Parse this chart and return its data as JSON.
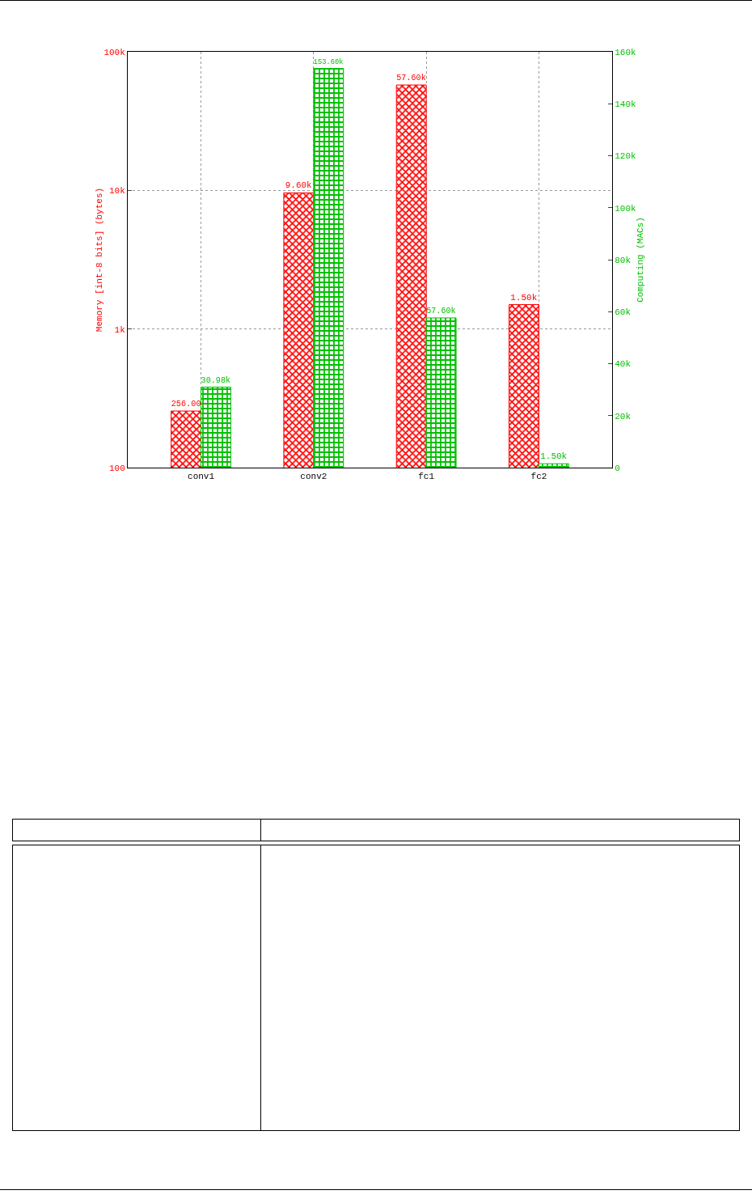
{
  "chart_data": {
    "type": "bar",
    "categories": [
      "conv1",
      "conv2",
      "fc1",
      "fc2"
    ],
    "series": [
      {
        "color": "#ff0000",
        "values": [
          256,
          9600,
          57600,
          1500
        ],
        "value_labels": [
          "256.00",
          "9.60k",
          "57.60k",
          "1.50k"
        ]
      },
      {
        "color": "#00c000",
        "axis": "y2",
        "values": [
          30980,
          153600,
          57600,
          1500
        ],
        "value_labels": [
          "30.98k",
          "153.60k",
          "57.60k",
          "1.50k"
        ]
      }
    ],
    "ylabel": "Memory [int-8 bits] (bytes)",
    "y2label": "Computing (MACs)",
    "log": "y",
    "ylim": [
      100,
      100000
    ],
    "yticks": [
      100,
      {
        "value": 1000,
        "label": "1k"
      },
      {
        "value": 10000,
        "label": "10k"
      },
      {
        "value": 100000,
        "label": "100k"
      }
    ],
    "y2lim": [
      0,
      160000
    ],
    "y2ticks": [
      0,
      {
        "value": 20000,
        "label": "20k"
      },
      {
        "value": 40000,
        "label": "40k"
      },
      {
        "value": 60000,
        "label": "60k"
      },
      {
        "value": 80000,
        "label": "80k"
      },
      {
        "value": 100000,
        "label": "100k"
      },
      {
        "value": 120000,
        "label": "120k"
      },
      {
        "value": 140000,
        "label": "140k"
      },
      {
        "value": 160000,
        "label": "160k"
      }
    ],
    "grid": true
  }
}
